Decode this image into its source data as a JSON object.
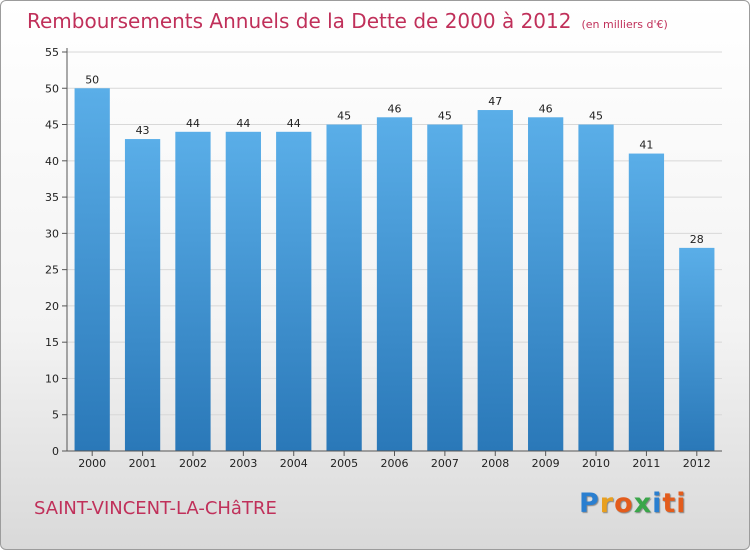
{
  "page": {
    "location": "SAINT-VINCENT-LA-CHâTRE",
    "logo_text": "Proxiti",
    "logo_letters": [
      "P",
      "r",
      "o",
      "x",
      "i",
      "ti"
    ]
  },
  "colors": {
    "title": "#c0305a",
    "bar_top": "#5aaee8",
    "bar_bottom": "#2a78b8",
    "grid": "#d8d8d8"
  },
  "chart_data": {
    "type": "bar",
    "title": "Remboursements Annuels de la Dette de 2000 à 2012",
    "subtitle": "(en milliers d'€)",
    "xlabel": "",
    "ylabel": "",
    "categories": [
      "2000",
      "2001",
      "2002",
      "2003",
      "2004",
      "2005",
      "2006",
      "2007",
      "2008",
      "2009",
      "2010",
      "2011",
      "2012"
    ],
    "values": [
      50,
      43,
      44,
      44,
      44,
      45,
      46,
      45,
      47,
      46,
      45,
      41,
      28
    ],
    "ylim": [
      0,
      55
    ],
    "yticks": [
      0,
      5,
      10,
      15,
      20,
      25,
      30,
      35,
      40,
      45,
      50,
      55
    ],
    "grid": true,
    "legend": "none"
  }
}
